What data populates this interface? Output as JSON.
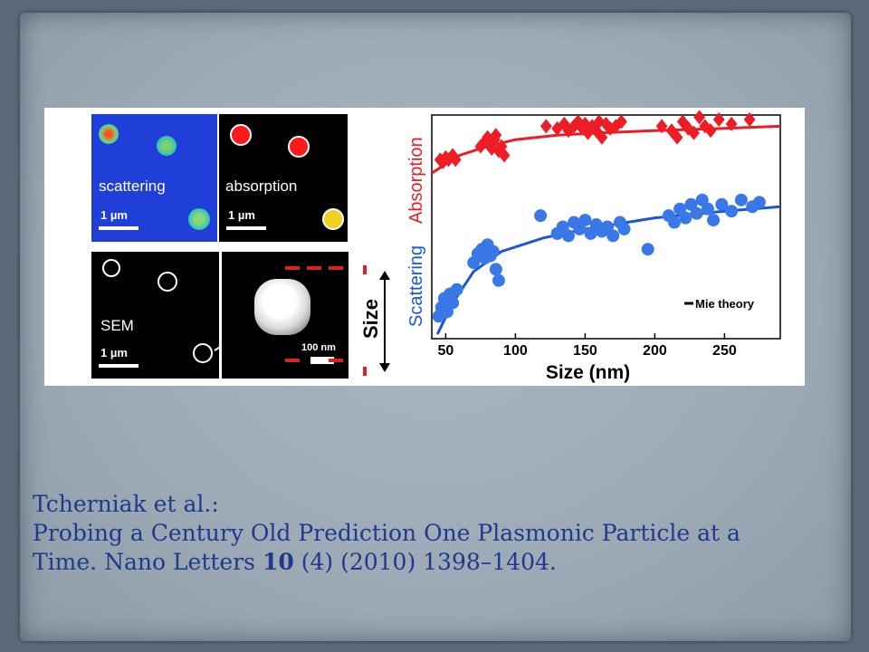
{
  "panels": {
    "scattering": {
      "label": "scattering",
      "scale": "1 µm"
    },
    "absorption": {
      "label": "absorption",
      "scale": "1 µm"
    },
    "sem": {
      "label": "SEM",
      "scale": "1 µm"
    },
    "zoom": {
      "scale": "100 nm"
    },
    "size_label": "Size"
  },
  "chart_data": {
    "type": "scatter",
    "xlabel": "Size (nm)",
    "ylabel_absorption": "Absorption",
    "ylabel_scattering": "Scattering",
    "xlim": [
      40,
      290
    ],
    "x_ticks": [
      "50",
      "100",
      "150",
      "200",
      "250"
    ],
    "legend": "Mie theory",
    "legend_position": "bottom-right",
    "series": [
      {
        "name": "Absorption",
        "marker": "diamond",
        "color": "#ee1c24",
        "points": [
          [
            46,
            0.8
          ],
          [
            48,
            0.79
          ],
          [
            50,
            0.81
          ],
          [
            52,
            0.8
          ],
          [
            55,
            0.82
          ],
          [
            57,
            0.8
          ],
          [
            75,
            0.86
          ],
          [
            78,
            0.88
          ],
          [
            80,
            0.9
          ],
          [
            82,
            0.87
          ],
          [
            83,
            0.85
          ],
          [
            85,
            0.89
          ],
          [
            86,
            0.91
          ],
          [
            88,
            0.84
          ],
          [
            90,
            0.86
          ],
          [
            92,
            0.82
          ],
          [
            122,
            0.95
          ],
          [
            130,
            0.94
          ],
          [
            135,
            0.96
          ],
          [
            138,
            0.93
          ],
          [
            142,
            0.95
          ],
          [
            145,
            0.97
          ],
          [
            148,
            0.94
          ],
          [
            150,
            0.96
          ],
          [
            152,
            0.92
          ],
          [
            155,
            0.95
          ],
          [
            158,
            0.93
          ],
          [
            160,
            0.97
          ],
          [
            162,
            0.9
          ],
          [
            165,
            0.96
          ],
          [
            168,
            0.94
          ],
          [
            172,
            0.95
          ],
          [
            176,
            0.97
          ],
          [
            205,
            0.95
          ],
          [
            212,
            0.93
          ],
          [
            216,
            0.9
          ],
          [
            220,
            0.97
          ],
          [
            224,
            0.94
          ],
          [
            228,
            0.92
          ],
          [
            232,
            0.99
          ],
          [
            236,
            0.95
          ],
          [
            240,
            0.93
          ],
          [
            246,
            0.98
          ],
          [
            255,
            0.96
          ],
          [
            268,
            0.98
          ]
        ]
      },
      {
        "name": "Scattering",
        "marker": "circle",
        "color": "#3a78e8",
        "points": [
          [
            45,
            0.1
          ],
          [
            47,
            0.14
          ],
          [
            49,
            0.18
          ],
          [
            51,
            0.12
          ],
          [
            53,
            0.2
          ],
          [
            55,
            0.16
          ],
          [
            58,
            0.22
          ],
          [
            70,
            0.34
          ],
          [
            73,
            0.38
          ],
          [
            76,
            0.4
          ],
          [
            78,
            0.36
          ],
          [
            80,
            0.42
          ],
          [
            82,
            0.37
          ],
          [
            84,
            0.39
          ],
          [
            86,
            0.31
          ],
          [
            88,
            0.26
          ],
          [
            118,
            0.55
          ],
          [
            130,
            0.47
          ],
          [
            134,
            0.5
          ],
          [
            138,
            0.46
          ],
          [
            142,
            0.52
          ],
          [
            146,
            0.49
          ],
          [
            150,
            0.53
          ],
          [
            154,
            0.47
          ],
          [
            158,
            0.51
          ],
          [
            162,
            0.48
          ],
          [
            166,
            0.5
          ],
          [
            170,
            0.46
          ],
          [
            175,
            0.52
          ],
          [
            178,
            0.49
          ],
          [
            195,
            0.4
          ],
          [
            210,
            0.55
          ],
          [
            214,
            0.52
          ],
          [
            218,
            0.58
          ],
          [
            222,
            0.54
          ],
          [
            226,
            0.6
          ],
          [
            230,
            0.56
          ],
          [
            234,
            0.62
          ],
          [
            238,
            0.58
          ],
          [
            242,
            0.53
          ],
          [
            248,
            0.6
          ],
          [
            255,
            0.57
          ],
          [
            262,
            0.62
          ],
          [
            270,
            0.59
          ],
          [
            275,
            0.61
          ]
        ]
      }
    ],
    "fits": [
      {
        "name": "Absorption fit",
        "color": "#ee1c24",
        "points": [
          [
            40,
            0.74
          ],
          [
            60,
            0.82
          ],
          [
            80,
            0.86
          ],
          [
            100,
            0.89
          ],
          [
            130,
            0.91
          ],
          [
            160,
            0.92
          ],
          [
            200,
            0.93
          ],
          [
            250,
            0.94
          ],
          [
            290,
            0.95
          ]
        ]
      },
      {
        "name": "Scattering fit",
        "color": "#1a55d8",
        "points": [
          [
            44,
            0.02
          ],
          [
            55,
            0.16
          ],
          [
            70,
            0.3
          ],
          [
            90,
            0.39
          ],
          [
            120,
            0.45
          ],
          [
            150,
            0.49
          ],
          [
            200,
            0.54
          ],
          [
            250,
            0.57
          ],
          [
            290,
            0.59
          ]
        ]
      }
    ]
  },
  "citation": {
    "line1": "Tcherniak et al.:",
    "line2": "Probing a Century  Old Prediction One Plasmonic Particle at a",
    "line3_pre": "Time. Nano Letters ",
    "line3_bold": "10",
    "line3_post": " (4) (2010) 1398–1404."
  }
}
